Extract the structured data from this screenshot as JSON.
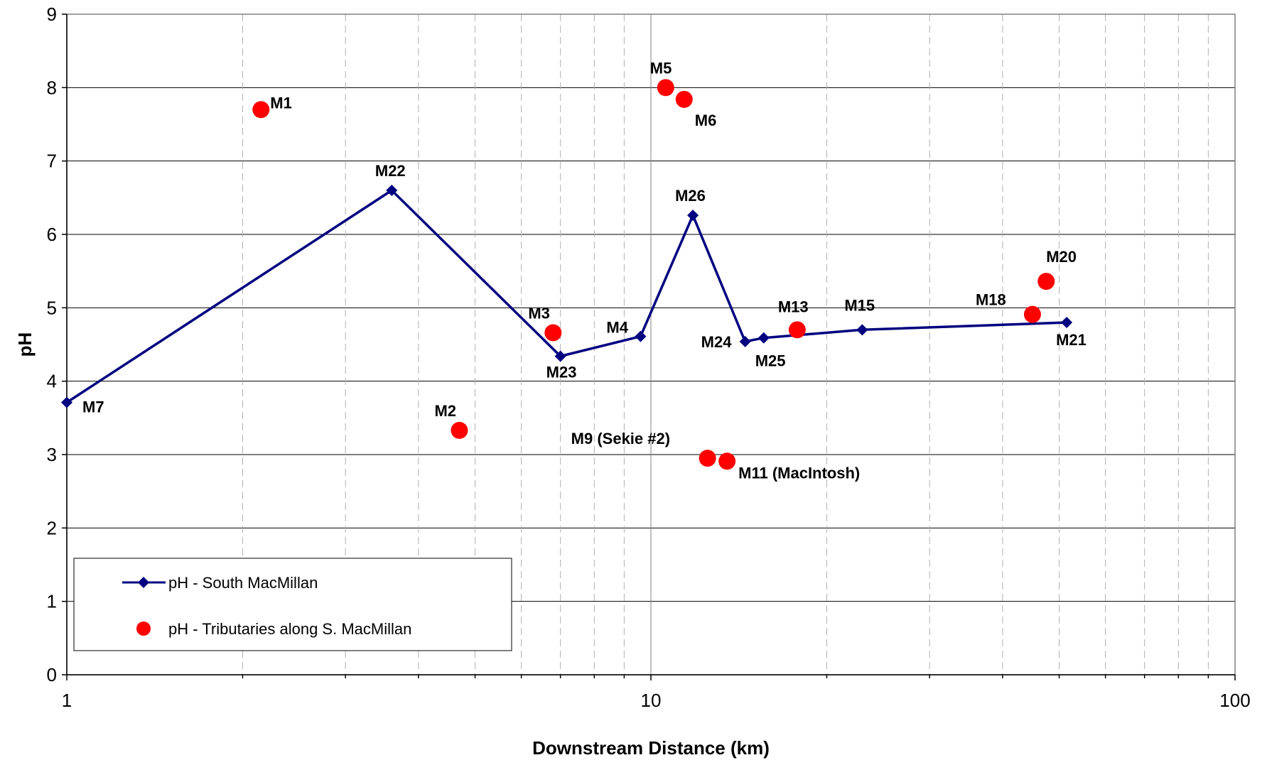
{
  "chart_data": {
    "type": "scatter",
    "title": "",
    "xlabel": "Downstream Distance (km)",
    "ylabel": "pH",
    "xscale": "log",
    "xlim": [
      1,
      100
    ],
    "ylim": [
      0,
      9
    ],
    "x_ticks": [
      1,
      10,
      100
    ],
    "x_tick_labels": [
      "1",
      "10",
      "100"
    ],
    "y_ticks": [
      0,
      1,
      2,
      3,
      4,
      5,
      6,
      7,
      8,
      9
    ],
    "grid": true,
    "legend_position": "bottom-left",
    "series": [
      {
        "name": "pH - South MacMillan",
        "kind": "line-with-diamond-markers",
        "color": "#000080",
        "points": [
          {
            "label": "M7",
            "x": 1.0,
            "y": 3.71
          },
          {
            "label": "M22",
            "x": 3.6,
            "y": 6.6
          },
          {
            "label": "M23",
            "x": 7.0,
            "y": 4.34
          },
          {
            "label": "M4",
            "x": 9.6,
            "y": 4.61
          },
          {
            "label": "M26",
            "x": 11.8,
            "y": 6.26
          },
          {
            "label": "M24",
            "x": 14.5,
            "y": 4.54
          },
          {
            "label": "M25",
            "x": 15.6,
            "y": 4.59
          },
          {
            "label": "M15",
            "x": 23.0,
            "y": 4.7
          },
          {
            "label": "M21",
            "x": 51.5,
            "y": 4.8
          }
        ]
      },
      {
        "name": "pH - Tributaries along S. MacMillan",
        "kind": "marker-only",
        "color": "#ff0000",
        "points": [
          {
            "label": "M1",
            "x": 2.15,
            "y": 7.7
          },
          {
            "label": "M2",
            "x": 4.7,
            "y": 3.33
          },
          {
            "label": "M3",
            "x": 6.8,
            "y": 4.66
          },
          {
            "label": "M5",
            "x": 10.6,
            "y": 8.0
          },
          {
            "label": "M6",
            "x": 11.4,
            "y": 7.84
          },
          {
            "label": "M9 (Sekie #2)",
            "x": 12.5,
            "y": 2.95
          },
          {
            "label": "M11 (MacIntosh)",
            "x": 13.5,
            "y": 2.91
          },
          {
            "label": "M13",
            "x": 17.8,
            "y": 4.7
          },
          {
            "label": "M18",
            "x": 45.0,
            "y": 4.91
          },
          {
            "label": "M20",
            "x": 47.5,
            "y": 5.36
          }
        ]
      }
    ]
  }
}
